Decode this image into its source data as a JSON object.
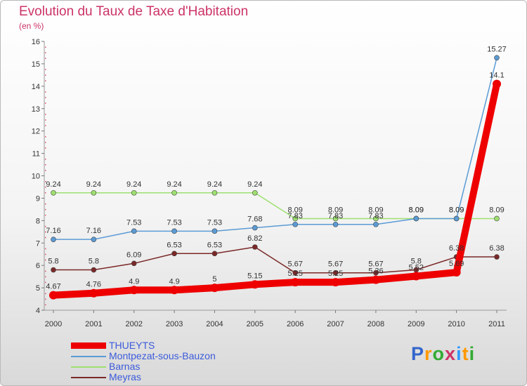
{
  "title": "Evolution du Taux de Taxe d'Habitation",
  "subtitle": "(en %)",
  "logo": {
    "text": "Proxiti",
    "colors": [
      "#3366cc",
      "#ff9900",
      "#33aa33",
      "#cc3366",
      "#3399ff",
      "#ff9900",
      "#33aa33"
    ]
  },
  "chart_data": {
    "type": "line",
    "title": "Evolution du Taux de Taxe d'Habitation",
    "ylabel": "(en %)",
    "xlabel": "",
    "x": [
      "2000",
      "2001",
      "2002",
      "2003",
      "2004",
      "2005",
      "2006",
      "2007",
      "2008",
      "2009",
      "2010",
      "2011"
    ],
    "ylim": [
      4,
      16
    ],
    "yticks": [
      "4",
      "5",
      "6",
      "7",
      "8",
      "9",
      "10",
      "11",
      "12",
      "13",
      "14",
      "15",
      "16"
    ],
    "grid": false,
    "legend_position": "bottom-left",
    "series": [
      {
        "name": "THUEYTS",
        "color": "#ee0000",
        "width": 10,
        "marker": 6,
        "values": [
          4.67,
          4.76,
          4.9,
          4.9,
          5,
          5.15,
          5.25,
          5.25,
          5.36,
          5.52,
          5.69,
          14.1
        ],
        "labels": [
          "4.67",
          "4.76",
          "4.9",
          "4.9",
          "5",
          "5.15",
          "5.25",
          "5.25",
          "5.36",
          "5.52",
          "5.69",
          "14.1"
        ]
      },
      {
        "name": "Montpezat-sous-Bauzon",
        "color": "#5b9bd5",
        "width": 1.5,
        "marker": 3.5,
        "values": [
          7.16,
          7.16,
          7.53,
          7.53,
          7.53,
          7.68,
          7.83,
          7.83,
          7.83,
          8.09,
          8.09,
          15.27
        ],
        "labels": [
          "7.16",
          "7.16",
          "7.53",
          "7.53",
          "7.53",
          "7.68",
          "7.83",
          "7.83",
          "7.83",
          "8.09",
          "8.09",
          "15.27"
        ]
      },
      {
        "name": "Barnas",
        "color": "#9ee070",
        "width": 1.5,
        "marker": 3.5,
        "values": [
          9.24,
          9.24,
          9.24,
          9.24,
          9.24,
          9.24,
          8.09,
          8.09,
          8.09,
          8.09,
          8.09,
          8.09
        ],
        "labels": [
          "9.24",
          "9.24",
          "9.24",
          "9.24",
          "9.24",
          "9.24",
          "8.09",
          "8.09",
          "8.09",
          "8.09",
          "8.09",
          "8.09"
        ]
      },
      {
        "name": "Meyras",
        "color": "#7b2828",
        "width": 1.5,
        "marker": 3.5,
        "values": [
          5.8,
          5.8,
          6.09,
          6.53,
          6.53,
          6.82,
          5.67,
          5.67,
          5.67,
          5.8,
          6.38,
          6.38
        ],
        "labels": [
          "5.8",
          "5.8",
          "6.09",
          "6.53",
          "6.53",
          "6.82",
          "5.67",
          "5.67",
          "5.67",
          "5.8",
          "6.38",
          "6.38"
        ]
      }
    ]
  }
}
